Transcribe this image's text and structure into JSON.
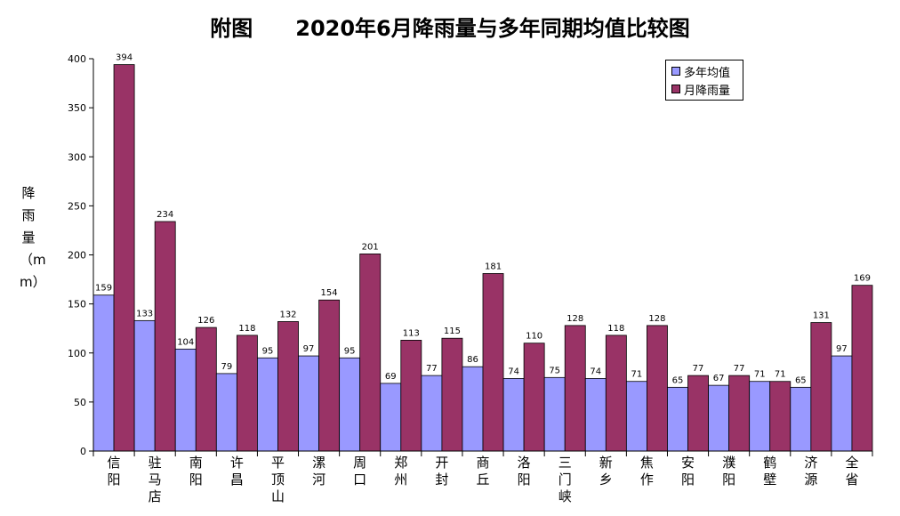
{
  "title": "附图　　2020年6月降雨量与多年同期均值比较图",
  "colors": {
    "avg": "#9999ff",
    "month": "#993366",
    "axis": "#000000"
  },
  "chart_data": {
    "type": "bar",
    "title": "附图　　2020年6月降雨量与多年同期均值比较图",
    "ylabel": "降雨量（mm）",
    "xlabel": "",
    "ylim": [
      0,
      400
    ],
    "yticks": [
      0,
      50,
      100,
      150,
      200,
      250,
      300,
      350,
      400
    ],
    "grid": false,
    "legend_position": "top-right",
    "categories": [
      "信阳",
      "驻马店",
      "南阳",
      "许昌",
      "平顶山",
      "漯河",
      "周口",
      "郑州",
      "开封",
      "商丘",
      "洛阳",
      "三门峡",
      "新乡",
      "焦作",
      "安阳",
      "濮阳",
      "鹤壁",
      "济源",
      "全省"
    ],
    "series": [
      {
        "name": "多年均值",
        "values": [
          159,
          133,
          104,
          79,
          95,
          97,
          95,
          69,
          77,
          86,
          74,
          75,
          74,
          71,
          65,
          67,
          71,
          65,
          97
        ]
      },
      {
        "name": "月降雨量",
        "values": [
          394,
          234,
          126,
          118,
          132,
          154,
          201,
          113,
          115,
          181,
          110,
          128,
          118,
          128,
          77,
          77,
          71,
          131,
          169
        ]
      }
    ]
  }
}
